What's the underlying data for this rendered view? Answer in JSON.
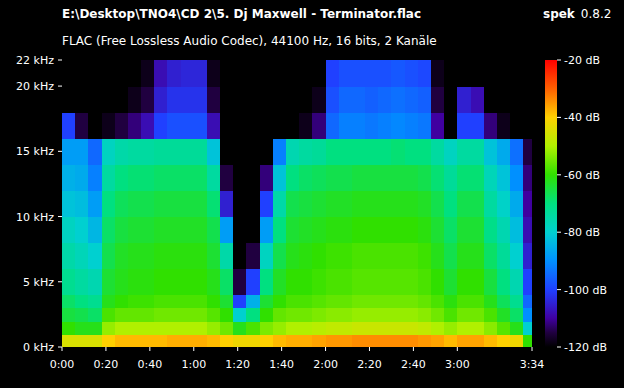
{
  "chart_data": {
    "type": "heatmap",
    "title": "E:\\Desktop\\TNO4\\CD 2\\5. Dj Maxwell - Terminator.flac",
    "subtitle": "FLAC (Free Lossless Audio Codec), 44100 Hz, 16 bits, 2 Kanäle",
    "app_name": "spek",
    "app_version": "0.8.2",
    "xlim": [
      0,
      214
    ],
    "xticks": [
      {
        "value": 0,
        "label": "0:00"
      },
      {
        "value": 20,
        "label": "0:20"
      },
      {
        "value": 40,
        "label": "0:40"
      },
      {
        "value": 60,
        "label": "1:00"
      },
      {
        "value": 80,
        "label": "1:20"
      },
      {
        "value": 100,
        "label": "1:40"
      },
      {
        "value": 120,
        "label": "2:00"
      },
      {
        "value": 140,
        "label": "2:20"
      },
      {
        "value": 160,
        "label": "2:40"
      },
      {
        "value": 180,
        "label": "3:00"
      },
      {
        "value": 214,
        "label": "3:34"
      }
    ],
    "ylim": [
      0,
      22
    ],
    "yticks": [
      {
        "value": 0,
        "label": "0 kHz"
      },
      {
        "value": 5,
        "label": "5 kHz"
      },
      {
        "value": 10,
        "label": "10 kHz"
      },
      {
        "value": 15,
        "label": "15 kHz"
      },
      {
        "value": 20,
        "label": "20 kHz"
      },
      {
        "value": 22,
        "label": "22 kHz"
      }
    ],
    "x_bins": [
      0,
      6,
      12,
      18,
      24,
      30,
      36,
      42,
      48,
      54,
      60,
      66,
      72,
      78,
      84,
      90,
      96,
      102,
      108,
      114,
      120,
      126,
      132,
      138,
      144,
      150,
      156,
      162,
      168,
      174,
      180,
      186,
      192,
      198,
      204,
      210,
      214
    ],
    "y_bins": [
      0,
      1,
      2,
      3,
      4,
      6,
      8,
      10,
      12,
      14,
      16,
      18,
      20,
      22
    ],
    "cells": [
      [
        -45,
        -60,
        -65,
        -68,
        -72,
        -75,
        -78,
        -82,
        -85,
        -88,
        -100,
        -120,
        -120
      ],
      [
        -45,
        -62,
        -66,
        -70,
        -74,
        -77,
        -80,
        -83,
        -86,
        -88,
        -115,
        -120,
        -120
      ],
      [
        -45,
        -62,
        -68,
        -72,
        -76,
        -80,
        -84,
        -88,
        -92,
        -95,
        -120,
        -120,
        -120
      ],
      [
        -40,
        -52,
        -58,
        -62,
        -64,
        -66,
        -68,
        -70,
        -74,
        -78,
        -118,
        -120,
        -120
      ],
      [
        -38,
        -50,
        -56,
        -60,
        -62,
        -63,
        -65,
        -67,
        -70,
        -75,
        -115,
        -120,
        -120
      ],
      [
        -38,
        -50,
        -56,
        -59,
        -61,
        -62,
        -64,
        -66,
        -69,
        -74,
        -112,
        -118,
        -120
      ],
      [
        -38,
        -50,
        -56,
        -59,
        -61,
        -62,
        -64,
        -66,
        -69,
        -74,
        -108,
        -115,
        -118
      ],
      [
        -38,
        -50,
        -55,
        -58,
        -60,
        -61,
        -63,
        -65,
        -68,
        -73,
        -100,
        -105,
        -108
      ],
      [
        -37,
        -50,
        -55,
        -58,
        -60,
        -61,
        -63,
        -65,
        -68,
        -73,
        -98,
        -102,
        -105
      ],
      [
        -37,
        -50,
        -55,
        -58,
        -60,
        -61,
        -63,
        -65,
        -68,
        -73,
        -98,
        -102,
        -104
      ],
      [
        -37,
        -50,
        -55,
        -58,
        -60,
        -61,
        -63,
        -65,
        -68,
        -73,
        -98,
        -102,
        -104
      ],
      [
        -38,
        -52,
        -57,
        -60,
        -62,
        -64,
        -66,
        -69,
        -74,
        -82,
        -108,
        -115,
        -118
      ],
      [
        -40,
        -55,
        -60,
        -64,
        -68,
        -75,
        -88,
        -105,
        -115,
        -120,
        -120,
        -120,
        -120
      ],
      [
        -42,
        -62,
        -80,
        -100,
        -115,
        -120,
        -120,
        -120,
        -120,
        -120,
        -120,
        -120,
        -120
      ],
      [
        -42,
        -58,
        -70,
        -85,
        -100,
        -115,
        -120,
        -120,
        -120,
        -120,
        -120,
        -120,
        -120
      ],
      [
        -40,
        -54,
        -60,
        -64,
        -70,
        -78,
        -88,
        -100,
        -112,
        -120,
        -120,
        -120,
        -120
      ],
      [
        -38,
        -52,
        -56,
        -60,
        -63,
        -66,
        -70,
        -75,
        -82,
        -92,
        -120,
        -120,
        -120
      ],
      [
        -37,
        -50,
        -55,
        -58,
        -60,
        -62,
        -64,
        -66,
        -70,
        -76,
        -120,
        -120,
        -120
      ],
      [
        -37,
        -50,
        -55,
        -58,
        -60,
        -61,
        -63,
        -65,
        -68,
        -74,
        -118,
        -120,
        -120
      ],
      [
        -36,
        -49,
        -54,
        -57,
        -59,
        -60,
        -62,
        -64,
        -67,
        -73,
        -112,
        -118,
        -120
      ],
      [
        -35,
        -48,
        -53,
        -56,
        -58,
        -59,
        -61,
        -63,
        -66,
        -70,
        -95,
        -98,
        -100
      ],
      [
        -35,
        -48,
        -53,
        -56,
        -58,
        -59,
        -61,
        -63,
        -66,
        -70,
        -92,
        -95,
        -98
      ],
      [
        -34,
        -47,
        -52,
        -55,
        -57,
        -58,
        -60,
        -62,
        -65,
        -70,
        -92,
        -95,
        -98
      ],
      [
        -34,
        -47,
        -52,
        -55,
        -57,
        -58,
        -60,
        -62,
        -65,
        -70,
        -93,
        -96,
        -98
      ],
      [
        -34,
        -47,
        -52,
        -55,
        -57,
        -58,
        -60,
        -62,
        -65,
        -70,
        -92,
        -95,
        -98
      ],
      [
        -34,
        -47,
        -52,
        -55,
        -57,
        -58,
        -60,
        -62,
        -65,
        -69,
        -91,
        -94,
        -97
      ],
      [
        -34,
        -47,
        -52,
        -55,
        -57,
        -58,
        -60,
        -62,
        -65,
        -70,
        -92,
        -95,
        -98
      ],
      [
        -35,
        -48,
        -53,
        -56,
        -58,
        -59,
        -61,
        -63,
        -66,
        -70,
        -93,
        -96,
        -99
      ],
      [
        -36,
        -50,
        -55,
        -58,
        -60,
        -62,
        -64,
        -66,
        -69,
        -74,
        -110,
        -115,
        -118
      ],
      [
        -38,
        -52,
        -58,
        -61,
        -64,
        -66,
        -68,
        -70,
        -73,
        -78,
        -120,
        -120,
        -120
      ],
      [
        -36,
        -50,
        -55,
        -58,
        -60,
        -62,
        -64,
        -66,
        -69,
        -74,
        -100,
        -105,
        -120
      ],
      [
        -36,
        -50,
        -55,
        -58,
        -60,
        -62,
        -64,
        -66,
        -69,
        -74,
        -100,
        -108,
        -120
      ],
      [
        -38,
        -53,
        -58,
        -62,
        -65,
        -68,
        -71,
        -74,
        -77,
        -82,
        -112,
        -120,
        -120
      ],
      [
        -40,
        -57,
        -63,
        -67,
        -70,
        -73,
        -76,
        -79,
        -82,
        -86,
        -118,
        -120,
        -120
      ],
      [
        -42,
        -62,
        -68,
        -72,
        -76,
        -80,
        -83,
        -86,
        -90,
        -94,
        -120,
        -120,
        -120
      ],
      [
        -60,
        -80,
        -90,
        -95,
        -100,
        -105,
        -108,
        -110,
        -112,
        -115,
        -120,
        -120,
        -120
      ]
    ],
    "colorbar": {
      "range": [
        -120,
        -20
      ],
      "ticks": [
        {
          "value": -20,
          "label": "-20 dB"
        },
        {
          "value": -40,
          "label": "-40 dB"
        },
        {
          "value": -60,
          "label": "-60 dB"
        },
        {
          "value": -80,
          "label": "-80 dB"
        },
        {
          "value": -100,
          "label": "-100 dB"
        },
        {
          "value": -120,
          "label": "-120 dB"
        }
      ]
    }
  }
}
